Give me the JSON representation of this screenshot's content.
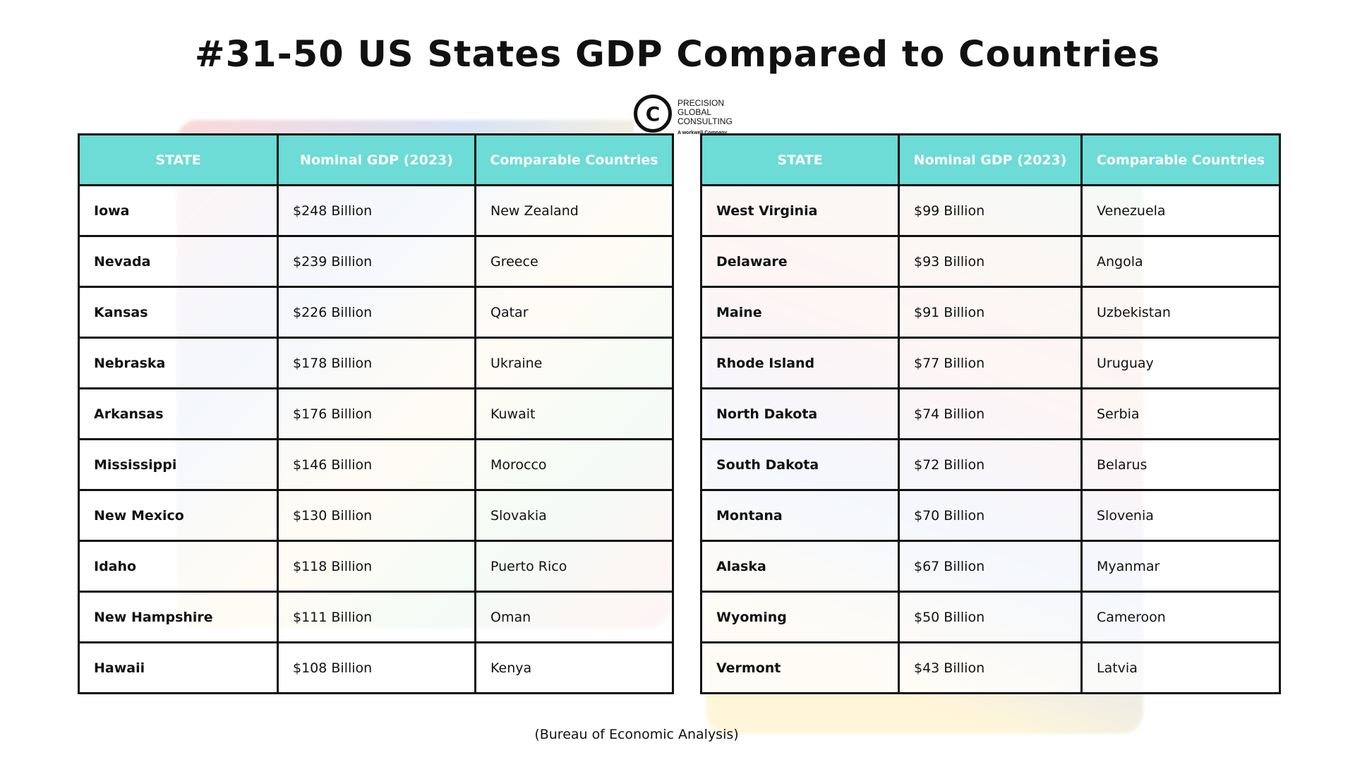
{
  "title": "#31-50 US States GDP Compared to Countries",
  "logo": {
    "line1": "PRECISION",
    "line2": "GLOBAL",
    "line3": "CONSULTING",
    "tagline": "A workwell Company"
  },
  "headers": [
    "STATE",
    "Nominal GDP (2023)",
    "Comparable Countries"
  ],
  "left_rows": [
    [
      "Iowa",
      "$248 Billion",
      "New Zealand"
    ],
    [
      "Nevada",
      "$239 Billion",
      "Greece"
    ],
    [
      "Kansas",
      "$226 Billion",
      "Qatar"
    ],
    [
      "Nebraska",
      "$178 Billion",
      "Ukraine"
    ],
    [
      "Arkansas",
      "$176 Billion",
      "Kuwait"
    ],
    [
      "Mississippi",
      "$146 Billion",
      "Morocco"
    ],
    [
      "New Mexico",
      "$130 Billion",
      "Slovakia"
    ],
    [
      "Idaho",
      "$118 Billion",
      "Puerto Rico"
    ],
    [
      "New Hampshire",
      "$111 Billion",
      "Oman"
    ],
    [
      "Hawaii",
      "$108 Billion",
      "Kenya"
    ]
  ],
  "right_rows": [
    [
      "West Virginia",
      "$99 Billion",
      "Venezuela"
    ],
    [
      "Delaware",
      "$93 Billion",
      "Angola"
    ],
    [
      "Maine",
      "$91 Billion",
      "Uzbekistan"
    ],
    [
      "Rhode Island",
      "$77 Billion",
      "Uruguay"
    ],
    [
      "North Dakota",
      "$74 Billion",
      "Serbia"
    ],
    [
      "South Dakota",
      "$72 Billion",
      "Belarus"
    ],
    [
      "Montana",
      "$70 Billion",
      "Slovenia"
    ],
    [
      "Alaska",
      "$67 Billion",
      "Myanmar"
    ],
    [
      "Wyoming",
      "$50 Billion",
      "Cameroon"
    ],
    [
      "Vermont",
      "$43 Billion",
      "Latvia"
    ]
  ],
  "footer": "(Bureau of Economic Analysis)"
}
